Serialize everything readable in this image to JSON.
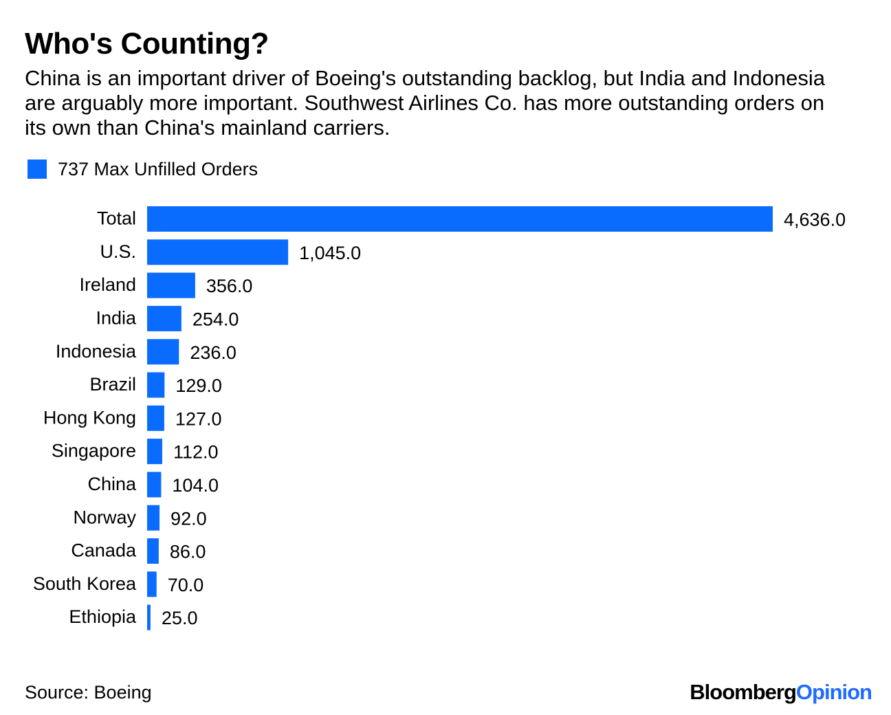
{
  "title": "Who's Counting?",
  "subtitle": "China is an important driver of Boeing's outstanding backlog, but India and Indonesia are arguably more important. Southwest Airlines Co. has more outstanding orders on its own than China's mainland carriers.",
  "source": "Source: Boeing",
  "brand": {
    "part1": "Bloomberg",
    "part2": "Opinion"
  },
  "colors": {
    "bar": "#0a6bff",
    "brand_accent": "#1f6bff",
    "text": "#000000"
  },
  "chart_data": {
    "type": "bar",
    "orientation": "horizontal",
    "title": "Who's Counting?",
    "xlabel": "",
    "ylabel": "",
    "grid": false,
    "legend": [
      "737 Max Unfilled Orders"
    ],
    "legend_position": "top-left",
    "xlim": [
      0,
      4636
    ],
    "categories": [
      "Total",
      "U.S.",
      "Ireland",
      "India",
      "Indonesia",
      "Brazil",
      "Hong Kong",
      "Singapore",
      "China",
      "Norway",
      "Canada",
      "South Korea",
      "Ethiopia"
    ],
    "series": [
      {
        "name": "737 Max Unfilled Orders",
        "values": [
          4636.0,
          1045.0,
          356.0,
          254.0,
          236.0,
          129.0,
          127.0,
          112.0,
          104.0,
          92.0,
          86.0,
          70.0,
          25.0
        ],
        "labels": [
          "4,636.0",
          "1,045.0",
          "356.0",
          "254.0",
          "236.0",
          "129.0",
          "127.0",
          "112.0",
          "104.0",
          "92.0",
          "86.0",
          "70.0",
          "25.0"
        ]
      }
    ]
  }
}
